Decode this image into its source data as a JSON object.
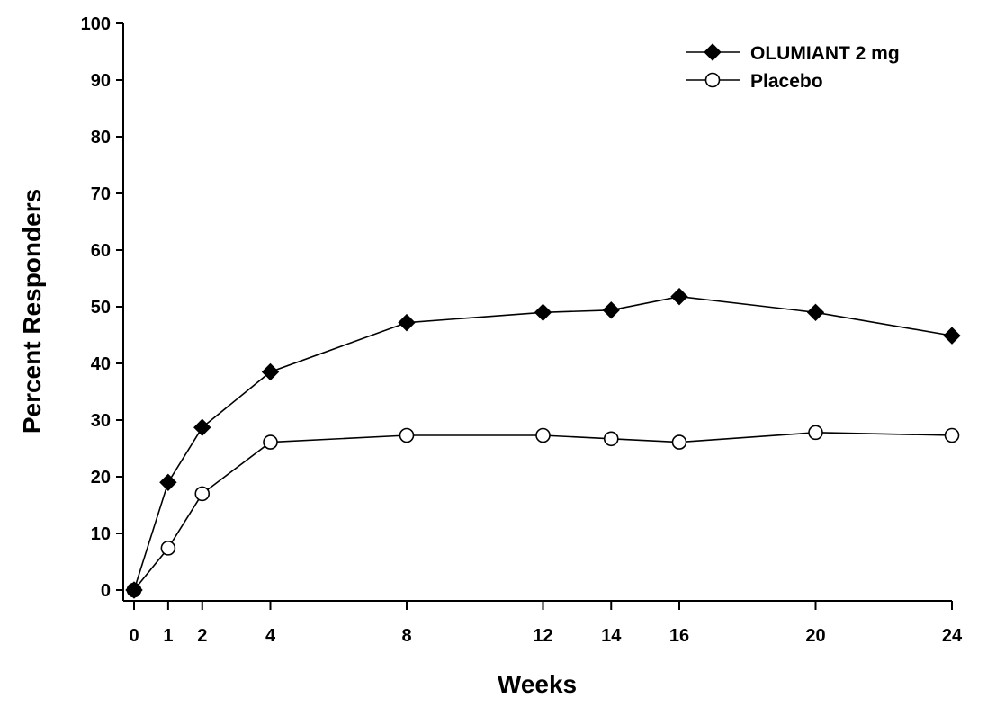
{
  "chart_data": {
    "type": "line",
    "title": "",
    "xlabel": "Weeks",
    "ylabel": "Percent Responders",
    "xlim": [
      0,
      24
    ],
    "ylim": [
      0,
      100
    ],
    "x_ticks": [
      0,
      1,
      2,
      4,
      8,
      12,
      14,
      16,
      20,
      24
    ],
    "y_ticks": [
      0,
      10,
      20,
      30,
      40,
      50,
      60,
      70,
      80,
      90,
      100
    ],
    "grid": false,
    "legend_position": "top-right",
    "series": [
      {
        "name": "OLUMIANT 2 mg",
        "marker": "filled-diamond",
        "color": "#000000",
        "x": [
          0,
          1,
          2,
          4,
          8,
          12,
          14,
          16,
          20,
          24
        ],
        "y": [
          0,
          19,
          28.7,
          38.5,
          47.2,
          49,
          49.4,
          51.8,
          49,
          44.9
        ]
      },
      {
        "name": "Placebo",
        "marker": "open-circle",
        "color": "#000000",
        "x": [
          0,
          1,
          2,
          4,
          8,
          12,
          14,
          16,
          20,
          24
        ],
        "y": [
          0,
          7.4,
          17,
          26.1,
          27.3,
          27.3,
          26.7,
          26.1,
          27.8,
          27.3
        ]
      }
    ]
  }
}
